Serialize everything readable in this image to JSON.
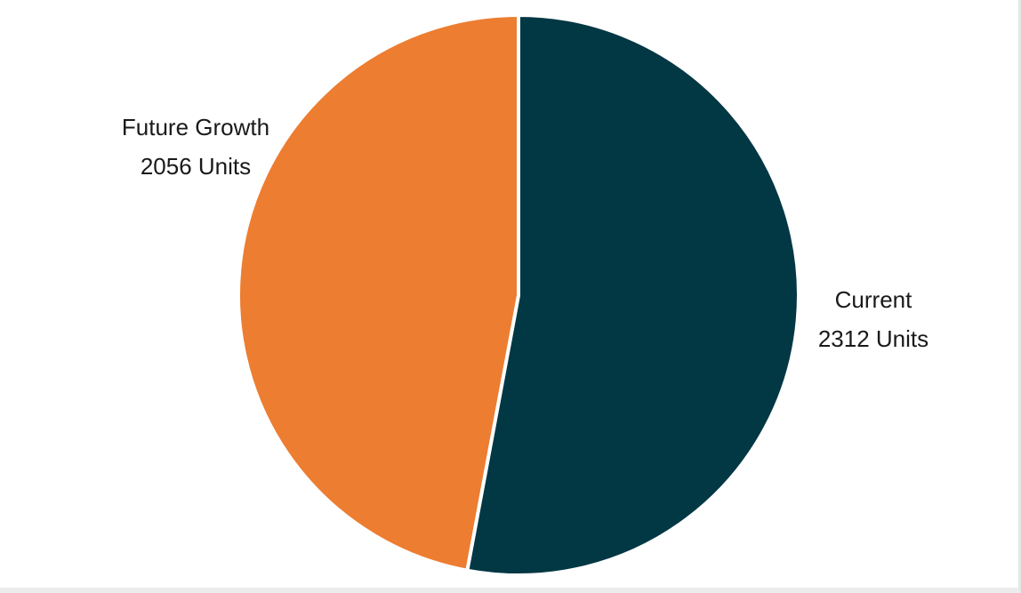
{
  "chart_data": {
    "type": "pie",
    "title": "",
    "slices": [
      {
        "name": "Current",
        "value": 2312,
        "value_label": "2312 Units",
        "color": "#023744"
      },
      {
        "name": "Future Growth",
        "value": 2056,
        "value_label": "2056 Units",
        "color": "#ed7d31"
      }
    ],
    "start_angle_deg": 0,
    "direction": "clockwise",
    "legend": "none",
    "label_placement": "outside"
  }
}
